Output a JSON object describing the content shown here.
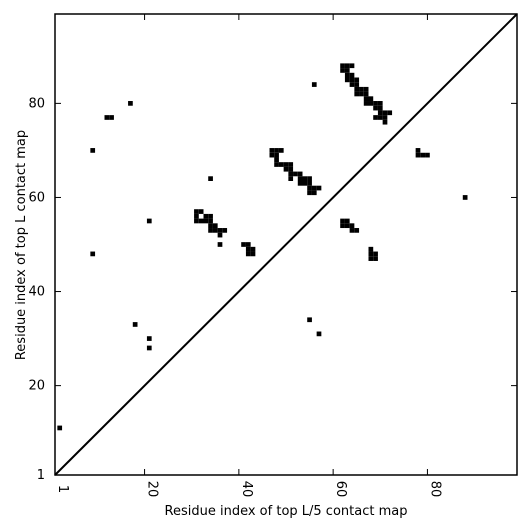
{
  "chart_data": {
    "type": "heatmap",
    "title": "",
    "xlabel": "Residue index of top L/5 contact map",
    "ylabel": "Residue index of top L contact map",
    "xlim": [
      1,
      99
    ],
    "ylim": [
      1,
      99
    ],
    "grid": false,
    "x_ticks": [
      {
        "value": 1,
        "label": "1"
      },
      {
        "value": 20,
        "label": "20"
      },
      {
        "value": 40,
        "label": "40"
      },
      {
        "value": 60,
        "label": "60"
      },
      {
        "value": 80,
        "label": "80"
      }
    ],
    "y_ticks": [
      {
        "value": 1,
        "label": "1"
      },
      {
        "value": 20,
        "label": "20"
      },
      {
        "value": 40,
        "label": "40"
      },
      {
        "value": 60,
        "label": "60"
      },
      {
        "value": 80,
        "label": "80"
      }
    ],
    "diagonal": {
      "from": [
        1,
        1
      ],
      "to": [
        99,
        99
      ]
    },
    "top_L_contacts": [
      [
        2,
        11
      ],
      [
        9,
        48
      ],
      [
        9,
        70
      ],
      [
        12,
        77
      ],
      [
        13,
        77
      ],
      [
        17,
        80
      ],
      [
        18,
        33
      ],
      [
        21,
        28
      ],
      [
        21,
        30
      ],
      [
        21,
        55
      ],
      [
        31,
        55
      ],
      [
        31,
        56
      ],
      [
        31,
        57
      ],
      [
        32,
        55
      ],
      [
        32,
        57
      ],
      [
        33,
        55
      ],
      [
        33,
        56
      ],
      [
        34,
        53
      ],
      [
        34,
        54
      ],
      [
        34,
        55
      ],
      [
        34,
        56
      ],
      [
        34,
        64
      ],
      [
        35,
        53
      ],
      [
        35,
        54
      ],
      [
        36,
        50
      ],
      [
        36,
        52
      ],
      [
        36,
        53
      ],
      [
        37,
        53
      ],
      [
        41,
        50
      ],
      [
        42,
        48
      ],
      [
        42,
        49
      ],
      [
        42,
        50
      ],
      [
        43,
        48
      ],
      [
        43,
        49
      ],
      [
        47,
        69
      ],
      [
        47,
        70
      ],
      [
        48,
        67
      ],
      [
        48,
        68
      ],
      [
        48,
        69
      ],
      [
        48,
        70
      ],
      [
        49,
        67
      ],
      [
        49,
        70
      ],
      [
        50,
        66
      ],
      [
        50,
        67
      ],
      [
        51,
        64
      ],
      [
        51,
        65
      ],
      [
        51,
        66
      ],
      [
        51,
        67
      ],
      [
        52,
        65
      ],
      [
        53,
        63
      ],
      [
        53,
        64
      ],
      [
        53,
        65
      ],
      [
        54,
        63
      ],
      [
        54,
        64
      ],
      [
        55,
        34
      ],
      [
        55,
        61
      ],
      [
        55,
        62
      ],
      [
        55,
        63
      ],
      [
        55,
        64
      ],
      [
        56,
        61
      ],
      [
        56,
        62
      ],
      [
        56,
        84
      ],
      [
        57,
        31
      ],
      [
        57,
        62
      ],
      [
        62,
        54
      ],
      [
        62,
        55
      ],
      [
        62,
        87
      ],
      [
        62,
        88
      ],
      [
        63,
        54
      ],
      [
        63,
        55
      ],
      [
        63,
        85
      ],
      [
        63,
        86
      ],
      [
        63,
        87
      ],
      [
        63,
        88
      ],
      [
        64,
        53
      ],
      [
        64,
        54
      ],
      [
        64,
        84
      ],
      [
        64,
        85
      ],
      [
        64,
        86
      ],
      [
        64,
        88
      ],
      [
        65,
        53
      ],
      [
        65,
        82
      ],
      [
        65,
        83
      ],
      [
        65,
        84
      ],
      [
        65,
        85
      ],
      [
        66,
        82
      ],
      [
        66,
        83
      ],
      [
        67,
        80
      ],
      [
        67,
        81
      ],
      [
        67,
        82
      ],
      [
        67,
        83
      ],
      [
        68,
        47
      ],
      [
        68,
        48
      ],
      [
        68,
        49
      ],
      [
        68,
        80
      ],
      [
        68,
        81
      ],
      [
        69,
        47
      ],
      [
        69,
        48
      ],
      [
        69,
        77
      ],
      [
        69,
        79
      ],
      [
        69,
        80
      ],
      [
        70,
        77
      ],
      [
        70,
        78
      ],
      [
        70,
        79
      ],
      [
        70,
        80
      ],
      [
        71,
        76
      ],
      [
        71,
        77
      ],
      [
        71,
        78
      ],
      [
        72,
        78
      ],
      [
        78,
        69
      ],
      [
        78,
        70
      ],
      [
        79,
        69
      ],
      [
        80,
        69
      ],
      [
        88,
        60
      ]
    ],
    "top_L5_contacts": []
  }
}
